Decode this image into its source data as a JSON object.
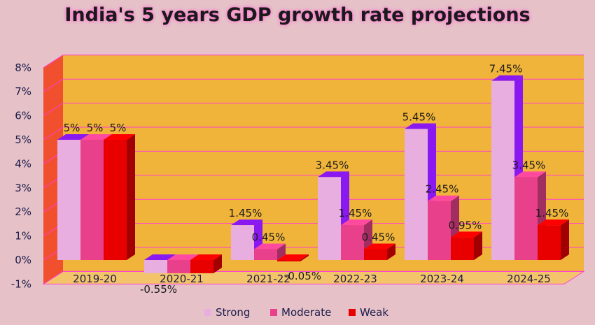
{
  "chart_data": {
    "type": "bar",
    "title": "India's 5 years GDP growth rate projections",
    "categories": [
      "2019-20",
      "2020-21",
      "2021-22",
      "2022-23",
      "2023-24",
      "2024-25"
    ],
    "series": [
      {
        "name": "Strong",
        "values": [
          5,
          -0.55,
          1.45,
          3.45,
          5.45,
          7.45
        ],
        "labels": [
          "5%",
          "-0.55%",
          "1.45%",
          "3.45%",
          "5.45%",
          "7.45%"
        ],
        "color": "#e8aee0"
      },
      {
        "name": "Moderate",
        "values": [
          5,
          -0.55,
          0.45,
          1.45,
          2.45,
          3.45
        ],
        "labels": [
          "5%",
          "",
          "0.45%",
          "1.45%",
          "2.45%",
          "3.45%"
        ],
        "color": "#e8408a"
      },
      {
        "name": "Weak",
        "values": [
          5,
          -0.55,
          -0.05,
          0.45,
          0.95,
          1.45
        ],
        "labels": [
          "5%",
          "",
          "-0.05%",
          "0.45%",
          "0.95%",
          "1.45%"
        ],
        "color": "#e80000"
      }
    ],
    "ylim": [
      -1,
      8
    ],
    "yticks": [
      -1,
      0,
      1,
      2,
      3,
      4,
      5,
      6,
      7,
      8
    ],
    "ytick_labels": [
      "-1%",
      "0%",
      "1%",
      "2%",
      "3%",
      "4%",
      "5%",
      "6%",
      "7%",
      "8%"
    ],
    "grid": true,
    "legend_position": "bottom",
    "colors": {
      "background": "#e6c2c8",
      "plot_area": "#f0b43a",
      "grid": "#ff3fd2",
      "wall": "#f0502e",
      "side_purple": "#8a18f0"
    }
  }
}
